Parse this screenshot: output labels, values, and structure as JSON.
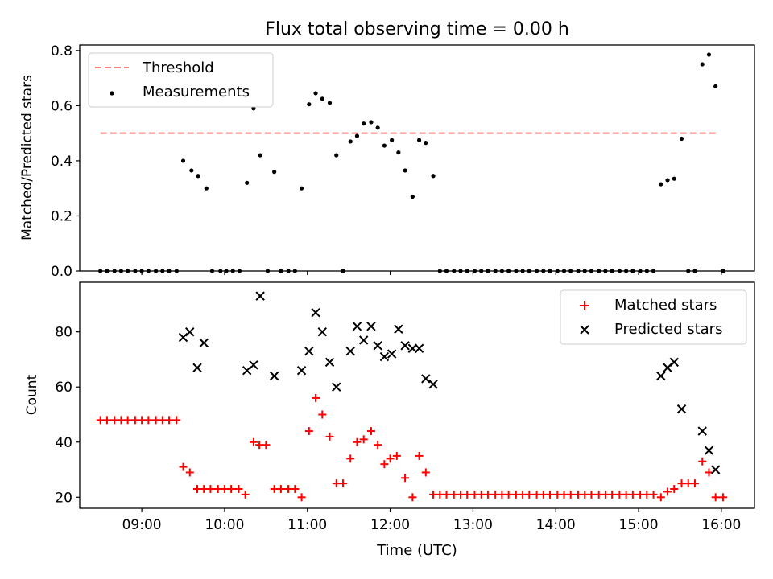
{
  "title": "Flux total observing time = 0.00 h",
  "colors": {
    "threshold": "#ff7f7f",
    "measurement": "#000000",
    "matched": "#ff0000",
    "predicted": "#000000"
  },
  "x_axis": {
    "label": "Time (UTC)",
    "min_h": 8.25,
    "max_h": 16.4,
    "ticks": [
      {
        "h": 9,
        "label": "09:00"
      },
      {
        "h": 10,
        "label": "10:00"
      },
      {
        "h": 11,
        "label": "11:00"
      },
      {
        "h": 12,
        "label": "12:00"
      },
      {
        "h": 13,
        "label": "13:00"
      },
      {
        "h": 14,
        "label": "14:00"
      },
      {
        "h": 15,
        "label": "15:00"
      },
      {
        "h": 16,
        "label": "16:00"
      }
    ]
  },
  "top_panel": {
    "ylabel": "Matched/Predicted stars",
    "ylim": [
      0,
      0.82
    ],
    "yticks": [
      {
        "v": 0.0,
        "label": "0.0"
      },
      {
        "v": 0.2,
        "label": "0.2"
      },
      {
        "v": 0.4,
        "label": "0.4"
      },
      {
        "v": 0.6,
        "label": "0.6"
      },
      {
        "v": 0.8,
        "label": "0.8"
      }
    ],
    "legend": {
      "threshold_label": "Threshold",
      "measurement_label": "Measurements",
      "placement": "upper-left"
    }
  },
  "bottom_panel": {
    "ylabel": "Count",
    "ylim": [
      16,
      98
    ],
    "yticks": [
      {
        "v": 20,
        "label": "20"
      },
      {
        "v": 40,
        "label": "40"
      },
      {
        "v": 60,
        "label": "60"
      },
      {
        "v": 80,
        "label": "80"
      }
    ],
    "legend": {
      "matched_label": "Matched stars",
      "predicted_label": "Predicted stars",
      "placement": "upper-right"
    }
  },
  "chart_data": [
    {
      "type": "scatter",
      "panel": "top",
      "x_unit": "hours UTC",
      "threshold": {
        "name": "Threshold",
        "y": 0.5,
        "x_start": 8.5,
        "x_end": 15.97
      },
      "series": [
        {
          "name": "Measurements",
          "points": [
            [
              8.5,
              0
            ],
            [
              8.58,
              0
            ],
            [
              8.67,
              0
            ],
            [
              8.75,
              0
            ],
            [
              8.83,
              0
            ],
            [
              8.92,
              0
            ],
            [
              9.0,
              0
            ],
            [
              9.08,
              0
            ],
            [
              9.17,
              0
            ],
            [
              9.25,
              0
            ],
            [
              9.33,
              0
            ],
            [
              9.42,
              0
            ],
            [
              9.5,
              0.4
            ],
            [
              9.6,
              0.365
            ],
            [
              9.68,
              0.345
            ],
            [
              9.78,
              0.3
            ],
            [
              9.85,
              0
            ],
            [
              9.95,
              0
            ],
            [
              10.02,
              0
            ],
            [
              10.1,
              0
            ],
            [
              10.18,
              0
            ],
            [
              10.27,
              0.32
            ],
            [
              10.35,
              0.59
            ],
            [
              10.43,
              0.42
            ],
            [
              10.52,
              0
            ],
            [
              10.6,
              0.36
            ],
            [
              10.68,
              0
            ],
            [
              10.77,
              0
            ],
            [
              10.85,
              0
            ],
            [
              10.93,
              0.3
            ],
            [
              11.02,
              0.605
            ],
            [
              11.1,
              0.645
            ],
            [
              11.18,
              0.625
            ],
            [
              11.27,
              0.61
            ],
            [
              11.35,
              0.42
            ],
            [
              11.43,
              0
            ],
            [
              11.52,
              0.47
            ],
            [
              11.6,
              0.49
            ],
            [
              11.68,
              0.535
            ],
            [
              11.77,
              0.54
            ],
            [
              11.85,
              0.52
            ],
            [
              11.93,
              0.455
            ],
            [
              12.02,
              0.475
            ],
            [
              12.1,
              0.43
            ],
            [
              12.18,
              0.365
            ],
            [
              12.27,
              0.27
            ],
            [
              12.35,
              0.475
            ],
            [
              12.43,
              0.465
            ],
            [
              12.52,
              0.345
            ],
            [
              12.6,
              0
            ],
            [
              12.68,
              0
            ],
            [
              12.77,
              0
            ],
            [
              12.85,
              0
            ],
            [
              12.93,
              0
            ],
            [
              13.02,
              0
            ],
            [
              13.1,
              0
            ],
            [
              13.18,
              0
            ],
            [
              13.27,
              0
            ],
            [
              13.35,
              0
            ],
            [
              13.43,
              0
            ],
            [
              13.52,
              0
            ],
            [
              13.6,
              0
            ],
            [
              13.68,
              0
            ],
            [
              13.77,
              0
            ],
            [
              13.85,
              0
            ],
            [
              13.93,
              0
            ],
            [
              14.02,
              0
            ],
            [
              14.1,
              0
            ],
            [
              14.18,
              0
            ],
            [
              14.27,
              0
            ],
            [
              14.35,
              0
            ],
            [
              14.43,
              0
            ],
            [
              14.52,
              0
            ],
            [
              14.6,
              0
            ],
            [
              14.68,
              0
            ],
            [
              14.77,
              0
            ],
            [
              14.85,
              0
            ],
            [
              14.93,
              0
            ],
            [
              15.02,
              0
            ],
            [
              15.1,
              0
            ],
            [
              15.18,
              0
            ],
            [
              15.27,
              0.315
            ],
            [
              15.35,
              0.33
            ],
            [
              15.43,
              0.335
            ],
            [
              15.52,
              0.48
            ],
            [
              15.6,
              0
            ],
            [
              15.68,
              0
            ],
            [
              15.77,
              0.75
            ],
            [
              15.85,
              0.785
            ],
            [
              15.93,
              0.67
            ],
            [
              16.02,
              0
            ]
          ]
        }
      ]
    },
    {
      "type": "scatter",
      "panel": "bottom",
      "x_unit": "hours UTC",
      "series": [
        {
          "name": "Matched stars",
          "points": [
            [
              8.5,
              48
            ],
            [
              8.58,
              48
            ],
            [
              8.67,
              48
            ],
            [
              8.75,
              48
            ],
            [
              8.83,
              48
            ],
            [
              8.92,
              48
            ],
            [
              9.0,
              48
            ],
            [
              9.08,
              48
            ],
            [
              9.17,
              48
            ],
            [
              9.25,
              48
            ],
            [
              9.33,
              48
            ],
            [
              9.42,
              48
            ],
            [
              9.5,
              31
            ],
            [
              9.58,
              29
            ],
            [
              9.67,
              23
            ],
            [
              9.75,
              23
            ],
            [
              9.83,
              23
            ],
            [
              9.92,
              23
            ],
            [
              10.0,
              23
            ],
            [
              10.08,
              23
            ],
            [
              10.17,
              23
            ],
            [
              10.25,
              21
            ],
            [
              10.35,
              40
            ],
            [
              10.42,
              39
            ],
            [
              10.5,
              39
            ],
            [
              10.6,
              23
            ],
            [
              10.68,
              23
            ],
            [
              10.77,
              23
            ],
            [
              10.85,
              23
            ],
            [
              10.93,
              20
            ],
            [
              11.02,
              44
            ],
            [
              11.1,
              56
            ],
            [
              11.18,
              50
            ],
            [
              11.27,
              42
            ],
            [
              11.35,
              25
            ],
            [
              11.43,
              25
            ],
            [
              11.52,
              34
            ],
            [
              11.6,
              40
            ],
            [
              11.68,
              41
            ],
            [
              11.77,
              44
            ],
            [
              11.85,
              39
            ],
            [
              11.93,
              32
            ],
            [
              12.0,
              34
            ],
            [
              12.08,
              35
            ],
            [
              12.18,
              27
            ],
            [
              12.27,
              20
            ],
            [
              12.35,
              35
            ],
            [
              12.43,
              29
            ],
            [
              12.52,
              21
            ],
            [
              12.6,
              21
            ],
            [
              12.68,
              21
            ],
            [
              12.77,
              21
            ],
            [
              12.85,
              21
            ],
            [
              12.93,
              21
            ],
            [
              13.02,
              21
            ],
            [
              13.1,
              21
            ],
            [
              13.18,
              21
            ],
            [
              13.27,
              21
            ],
            [
              13.35,
              21
            ],
            [
              13.43,
              21
            ],
            [
              13.52,
              21
            ],
            [
              13.6,
              21
            ],
            [
              13.68,
              21
            ],
            [
              13.77,
              21
            ],
            [
              13.85,
              21
            ],
            [
              13.93,
              21
            ],
            [
              14.02,
              21
            ],
            [
              14.1,
              21
            ],
            [
              14.18,
              21
            ],
            [
              14.27,
              21
            ],
            [
              14.35,
              21
            ],
            [
              14.43,
              21
            ],
            [
              14.52,
              21
            ],
            [
              14.6,
              21
            ],
            [
              14.68,
              21
            ],
            [
              14.77,
              21
            ],
            [
              14.85,
              21
            ],
            [
              14.93,
              21
            ],
            [
              15.02,
              21
            ],
            [
              15.1,
              21
            ],
            [
              15.18,
              21
            ],
            [
              15.27,
              20
            ],
            [
              15.35,
              22
            ],
            [
              15.43,
              23
            ],
            [
              15.52,
              25
            ],
            [
              15.6,
              25
            ],
            [
              15.68,
              25
            ],
            [
              15.77,
              33
            ],
            [
              15.85,
              29
            ],
            [
              15.93,
              20
            ],
            [
              16.02,
              20
            ]
          ]
        },
        {
          "name": "Predicted stars",
          "points": [
            [
              9.5,
              78
            ],
            [
              9.58,
              80
            ],
            [
              9.67,
              67
            ],
            [
              9.75,
              76
            ],
            [
              10.27,
              66
            ],
            [
              10.35,
              68
            ],
            [
              10.43,
              93
            ],
            [
              10.6,
              64
            ],
            [
              10.93,
              66
            ],
            [
              11.02,
              73
            ],
            [
              11.1,
              87
            ],
            [
              11.18,
              80
            ],
            [
              11.27,
              69
            ],
            [
              11.35,
              60
            ],
            [
              11.52,
              73
            ],
            [
              11.6,
              82
            ],
            [
              11.68,
              77
            ],
            [
              11.77,
              82
            ],
            [
              11.85,
              75
            ],
            [
              11.93,
              71
            ],
            [
              12.02,
              72
            ],
            [
              12.1,
              81
            ],
            [
              12.18,
              75
            ],
            [
              12.27,
              74
            ],
            [
              12.35,
              74
            ],
            [
              12.43,
              63
            ],
            [
              12.52,
              61
            ],
            [
              15.27,
              64
            ],
            [
              15.35,
              67
            ],
            [
              15.43,
              69
            ],
            [
              15.52,
              52
            ],
            [
              15.77,
              44
            ],
            [
              15.85,
              37
            ],
            [
              15.93,
              30
            ]
          ]
        }
      ]
    }
  ]
}
